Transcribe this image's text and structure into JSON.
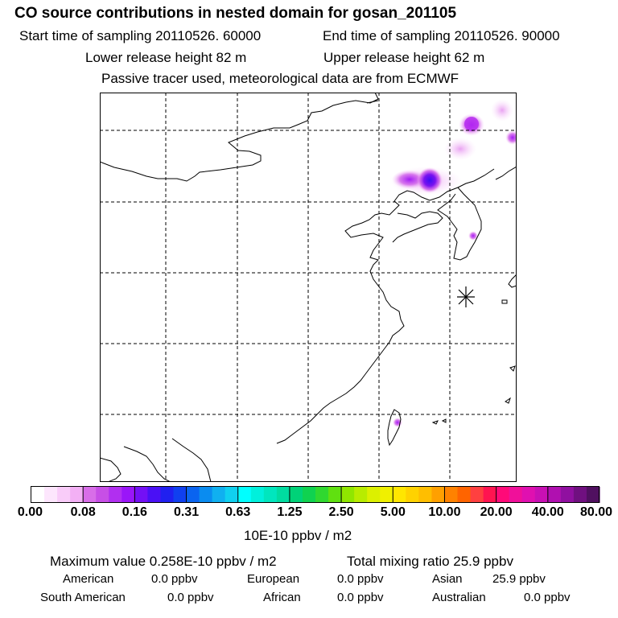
{
  "header": {
    "title": "CO  source contributions in nested domain for gosan_201105",
    "start_time": "Start time of sampling 20110526. 60000",
    "end_time": "End time of sampling 20110526. 90000",
    "lower_release": "Lower release height   82 m",
    "upper_release": "Upper release height   62 m",
    "tracer_note": "Passive tracer used, meteorological data are from ECMWF"
  },
  "colorbar": {
    "colors": [
      "#ffffff",
      "#fde6fd",
      "#f9ccf9",
      "#f3b0f5",
      "#d86ee8",
      "#c74fe6",
      "#b12ff0",
      "#9a16f8",
      "#7410f5",
      "#4a10f5",
      "#2020f0",
      "#1040f0",
      "#0a64f0",
      "#0a8cf0",
      "#10b0f0",
      "#10d0f0",
      "#00ffff",
      "#00f0dc",
      "#00e6be",
      "#00dca0",
      "#00d278",
      "#10d250",
      "#30d830",
      "#60e010",
      "#90e600",
      "#b8ec00",
      "#dcf000",
      "#f0f000",
      "#ffe600",
      "#ffd200",
      "#ffbe00",
      "#ffa000",
      "#ff8200",
      "#ff6400",
      "#ff4040",
      "#ff1450",
      "#ff0a78",
      "#f0109a",
      "#e010b0",
      "#c810b4",
      "#b010b0",
      "#9010a0",
      "#701080",
      "#501060"
    ],
    "tick_labels": [
      "0.00",
      "0.08",
      "0.16",
      "0.31",
      "0.63",
      "1.25",
      "2.50",
      "5.00",
      "10.00",
      "20.00",
      "40.00",
      "80.00"
    ],
    "unit": "10E-10 ppbv / m2"
  },
  "stats": {
    "max_value": "Maximum value  0.258E-10 ppbv / m2",
    "total_mixing": "Total mixing ratio       25.9 ppbv",
    "american_label": "American",
    "american_value": "0.0 ppbv",
    "european_label": "European",
    "european_value": "0.0 ppbv",
    "asian_label": "Asian",
    "asian_value": "25.9 ppbv",
    "south_american_label": "South American",
    "south_american_value": "0.0 ppbv",
    "african_label": "African",
    "african_value": "0.0 ppbv",
    "australian_label": "Australian",
    "australian_value": "0.0 ppbv"
  }
}
